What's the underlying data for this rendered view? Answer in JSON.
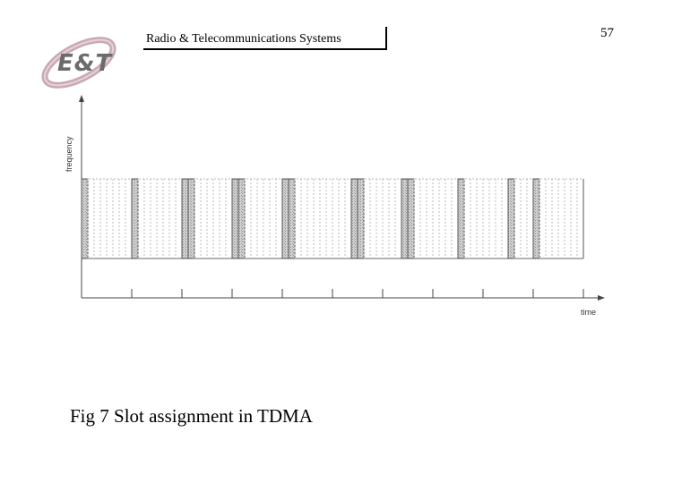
{
  "header": {
    "title": "Radio & Telecommunications Systems",
    "page_number": "57",
    "logo_text": "E&T"
  },
  "diagram": {
    "y_axis_label": "frequency",
    "x_axis_label": "time",
    "frame_count": 10,
    "slots_per_frame": 8,
    "frames": [
      {
        "shaded": [
          0
        ]
      },
      {
        "shaded": [
          0
        ]
      },
      {
        "shaded": [
          0,
          1
        ]
      },
      {
        "shaded": [
          0,
          1
        ]
      },
      {
        "shaded": [
          0,
          1
        ]
      },
      {
        "shaded": [
          3,
          4
        ]
      },
      {
        "shaded": [
          3,
          4
        ]
      },
      {
        "shaded": [
          4
        ]
      },
      {
        "shaded": [
          4
        ]
      },
      {
        "shaded": [
          0
        ]
      }
    ],
    "colors": {
      "slot_shaded": "#bdbdbd",
      "slot_hatch": "#8a8a8a",
      "slot_outline": "#555555",
      "dotted_line": "#bbbbbb",
      "axis": "#444444"
    }
  },
  "caption": "Fig 7 Slot assignment in TDMA"
}
